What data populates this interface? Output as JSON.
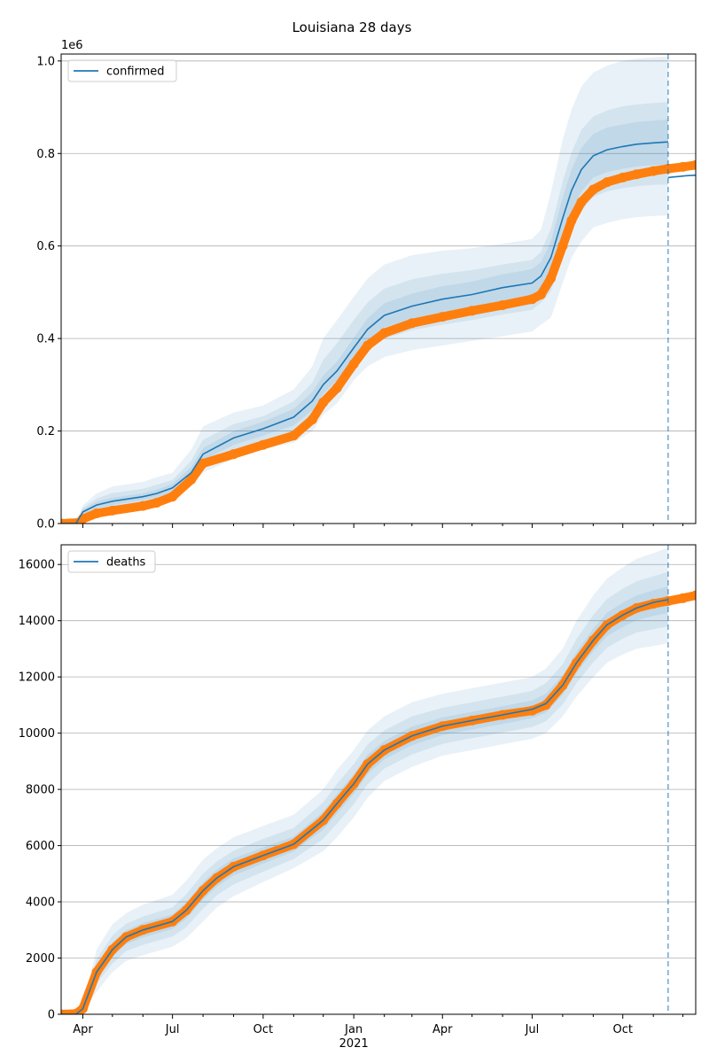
{
  "figure": {
    "title": "Louisiana 28 days"
  },
  "colors": {
    "band": "#1f77b4",
    "model": "#1f77b4",
    "observed": "#ff7f0e",
    "grid": "#b0b0b0",
    "forecast_line": "#1f77b4"
  },
  "chart_data": [
    {
      "type": "line",
      "legend": {
        "entries": [
          "confirmed"
        ],
        "placement": "top-left"
      },
      "y_scale_label": "1e6",
      "ylim": [
        0,
        1015000
      ],
      "yticks": [
        0,
        200000,
        400000,
        600000,
        800000,
        1000000
      ],
      "ytick_labels": [
        "0.0",
        "0.2",
        "0.4",
        "0.6",
        "0.8",
        "1.0"
      ],
      "xlim": [
        "2020-03-10",
        "2021-12-14"
      ],
      "grid": "y-major",
      "forecast_start": "2021-11-16",
      "x": [
        "2020-03-10",
        "2020-03-25",
        "2020-04-01",
        "2020-04-15",
        "2020-05-01",
        "2020-06-01",
        "2020-06-15",
        "2020-07-01",
        "2020-07-20",
        "2020-08-01",
        "2020-09-01",
        "2020-10-01",
        "2020-11-01",
        "2020-11-20",
        "2020-12-01",
        "2020-12-15",
        "2021-01-01",
        "2021-01-15",
        "2021-02-01",
        "2021-03-01",
        "2021-04-01",
        "2021-05-01",
        "2021-06-01",
        "2021-07-01",
        "2021-07-10",
        "2021-07-20",
        "2021-08-01",
        "2021-08-10",
        "2021-08-20",
        "2021-09-01",
        "2021-09-15",
        "2021-10-01",
        "2021-10-15",
        "2021-11-01",
        "2021-11-16"
      ],
      "series": [
        {
          "name": "confirmed",
          "role": "model",
          "values": [
            0,
            0,
            25000,
            40000,
            48000,
            58000,
            65000,
            77000,
            110000,
            150000,
            185000,
            205000,
            230000,
            265000,
            300000,
            330000,
            380000,
            420000,
            450000,
            470000,
            485000,
            495000,
            510000,
            520000,
            535000,
            575000,
            660000,
            720000,
            765000,
            795000,
            808000,
            815000,
            820000,
            823000,
            825000
          ],
          "bands": [
            {
              "level": "outer",
              "lower": [
                0,
                0,
                12000,
                20000,
                24000,
                36000,
                40000,
                50000,
                80000,
                110000,
                140000,
                160000,
                175000,
                200000,
                235000,
                260000,
                310000,
                340000,
                360000,
                375000,
                385000,
                395000,
                405000,
                415000,
                430000,
                445000,
                520000,
                575000,
                610000,
                640000,
                650000,
                658000,
                662000,
                665000,
                666000
              ],
              "upper": [
                0,
                0,
                40000,
                65000,
                80000,
                90000,
                100000,
                110000,
                160000,
                210000,
                240000,
                255000,
                290000,
                340000,
                400000,
                440000,
                490000,
                530000,
                560000,
                580000,
                590000,
                595000,
                605000,
                615000,
                635000,
                715000,
                830000,
                895000,
                945000,
                975000,
                990000,
                1000000,
                1005000,
                1008000,
                1010000
              ]
            },
            {
              "level": "middle",
              "lower": [
                0,
                0,
                18000,
                27000,
                32000,
                45000,
                50000,
                60000,
                92000,
                127000,
                158000,
                177000,
                198000,
                227000,
                264000,
                292000,
                340000,
                375000,
                400000,
                418000,
                430000,
                440000,
                452000,
                462000,
                477000,
                502000,
                578000,
                636000,
                676000,
                706000,
                718000,
                725000,
                729000,
                732000,
                733000
              ],
              "upper": [
                0,
                0,
                34000,
                54000,
                66000,
                75000,
                84000,
                94000,
                136000,
                181000,
                215000,
                232000,
                264000,
                305000,
                354000,
                390000,
                440000,
                478000,
                508000,
                528000,
                540000,
                548000,
                560000,
                570000,
                587000,
                638000,
                740000,
                802000,
                851000,
                880000,
                893000,
                902000,
                906000,
                909000,
                911000
              ]
            },
            {
              "level": "inner",
              "lower": [
                0,
                0,
                21000,
                33000,
                40000,
                51000,
                57000,
                68000,
                100000,
                137000,
                170000,
                190000,
                212000,
                245000,
                280000,
                310000,
                358000,
                396000,
                424000,
                443000,
                457000,
                467000,
                481000,
                490000,
                505000,
                535000,
                615000,
                675000,
                718000,
                748000,
                760000,
                767000,
                772000,
                775000,
                776000
              ],
              "upper": [
                0,
                0,
                30000,
                47000,
                56000,
                65000,
                73000,
                86000,
                122000,
                163000,
                200000,
                220000,
                248000,
                285000,
                320000,
                350000,
                402000,
                444000,
                476000,
                497000,
                513000,
                523000,
                539000,
                550000,
                565000,
                610000,
                705000,
                765000,
                812000,
                842000,
                856000,
                863000,
                868000,
                871000,
                874000
              ]
            }
          ]
        },
        {
          "name": "",
          "role": "model-forecast",
          "x": [
            "2021-11-16",
            "2021-11-25",
            "2021-12-05",
            "2021-12-14"
          ],
          "values": [
            748000,
            750000,
            752000,
            753000
          ]
        },
        {
          "name": "",
          "role": "observed",
          "x": [
            "2020-03-10",
            "2020-03-28",
            "2020-04-01",
            "2020-04-15",
            "2020-05-01",
            "2020-06-01",
            "2020-06-15",
            "2020-07-01",
            "2020-07-20",
            "2020-08-01",
            "2020-09-01",
            "2020-10-01",
            "2020-11-01",
            "2020-11-20",
            "2020-12-01",
            "2020-12-15",
            "2021-01-01",
            "2021-01-15",
            "2021-02-01",
            "2021-03-01",
            "2021-04-01",
            "2021-05-01",
            "2021-06-01",
            "2021-07-01",
            "2021-07-10",
            "2021-07-20",
            "2021-08-01",
            "2021-08-10",
            "2021-08-20",
            "2021-09-01",
            "2021-09-15",
            "2021-10-01",
            "2021-10-15",
            "2021-11-01",
            "2021-11-16",
            "2021-12-01",
            "2021-12-14"
          ],
          "values": [
            0,
            2000,
            10000,
            22000,
            28000,
            38000,
            45000,
            58000,
            95000,
            130000,
            150000,
            170000,
            190000,
            225000,
            262000,
            293000,
            345000,
            385000,
            412000,
            433000,
            447000,
            460000,
            472000,
            485000,
            495000,
            530000,
            600000,
            655000,
            695000,
            722000,
            738000,
            748000,
            755000,
            762000,
            767000,
            771000,
            775000
          ]
        }
      ]
    },
    {
      "type": "line",
      "legend": {
        "entries": [
          "deaths"
        ],
        "placement": "top-left"
      },
      "ylim": [
        0,
        16700
      ],
      "yticks": [
        0,
        2000,
        4000,
        6000,
        8000,
        10000,
        12000,
        14000,
        16000
      ],
      "ytick_labels": [
        "0",
        "2000",
        "4000",
        "6000",
        "8000",
        "10000",
        "12000",
        "14000",
        "16000"
      ],
      "xlim": [
        "2020-03-10",
        "2021-12-14"
      ],
      "xticks": [
        "2020-04-01",
        "2020-07-01",
        "2020-10-01",
        "2021-01-01",
        "2021-04-01",
        "2021-07-01",
        "2021-10-01"
      ],
      "xtick_labels": [
        "Apr",
        "Jul",
        "Oct",
        "Jan",
        "Apr",
        "Jul",
        "Oct"
      ],
      "xtick_year_label": "2021",
      "grid": "y-major",
      "forecast_start": "2021-11-16",
      "x": [
        "2020-03-10",
        "2020-03-25",
        "2020-04-01",
        "2020-04-15",
        "2020-05-01",
        "2020-05-15",
        "2020-06-01",
        "2020-07-01",
        "2020-07-15",
        "2020-08-01",
        "2020-08-15",
        "2020-09-01",
        "2020-10-01",
        "2020-11-01",
        "2020-12-01",
        "2020-12-15",
        "2021-01-01",
        "2021-01-15",
        "2021-02-01",
        "2021-03-01",
        "2021-04-01",
        "2021-05-01",
        "2021-06-01",
        "2021-07-01",
        "2021-07-15",
        "2021-08-01",
        "2021-08-15",
        "2021-09-01",
        "2021-09-15",
        "2021-10-01",
        "2021-10-15",
        "2021-11-01",
        "2021-11-16"
      ],
      "series": [
        {
          "name": "deaths",
          "role": "model",
          "values": [
            0,
            0,
            200,
            1500,
            2300,
            2750,
            3000,
            3300,
            3700,
            4400,
            4850,
            5250,
            5650,
            6050,
            6900,
            7500,
            8200,
            8900,
            9400,
            9900,
            10250,
            10450,
            10650,
            10850,
            11050,
            11700,
            12500,
            13300,
            13850,
            14200,
            14450,
            14650,
            14750
          ],
          "bands": [
            {
              "level": "outer",
              "lower": [
                0,
                0,
                100,
                800,
                1500,
                1900,
                2100,
                2400,
                2700,
                3300,
                3800,
                4200,
                4700,
                5200,
                5800,
                6300,
                7000,
                7700,
                8300,
                8800,
                9200,
                9400,
                9600,
                9800,
                10000,
                10600,
                11300,
                12000,
                12500,
                12800,
                13000,
                13100,
                13200
              ],
              "upper": [
                0,
                0,
                350,
                2300,
                3200,
                3600,
                3900,
                4250,
                4750,
                5500,
                5900,
                6300,
                6700,
                7100,
                8000,
                8700,
                9400,
                10100,
                10600,
                11100,
                11400,
                11600,
                11800,
                12000,
                12300,
                13000,
                14000,
                14900,
                15500,
                15900,
                16200,
                16400,
                16600
              ]
            },
            {
              "level": "middle",
              "lower": [
                0,
                0,
                140,
                1100,
                1800,
                2250,
                2470,
                2770,
                3100,
                3760,
                4230,
                4620,
                5070,
                5520,
                6240,
                6780,
                7480,
                8180,
                8740,
                9240,
                9620,
                9820,
                10020,
                10220,
                10420,
                11020,
                11780,
                12520,
                13040,
                13360,
                13580,
                13700,
                13800
              ],
              "upper": [
                0,
                0,
                290,
                1950,
                2800,
                3220,
                3480,
                3800,
                4270,
                5000,
                5440,
                5820,
                6240,
                6630,
                7540,
                8200,
                8900,
                9600,
                10100,
                10600,
                10900,
                11100,
                11300,
                11500,
                11780,
                12450,
                13350,
                14200,
                14770,
                15140,
                15400,
                15580,
                15740
              ]
            },
            {
              "level": "inner",
              "lower": [
                0,
                0,
                170,
                1300,
                2050,
                2500,
                2730,
                3030,
                3400,
                4080,
                4540,
                4940,
                5360,
                5790,
                6570,
                7140,
                7840,
                8540,
                9070,
                9570,
                9930,
                10130,
                10330,
                10530,
                10730,
                11360,
                12140,
                12910,
                13450,
                13780,
                14020,
                14170,
                14280
              ],
              "upper": [
                0,
                0,
                250,
                1720,
                2550,
                2990,
                3250,
                3550,
                3980,
                4700,
                5150,
                5550,
                5940,
                6320,
                7210,
                7840,
                8540,
                9240,
                9730,
                10230,
                10560,
                10760,
                10960,
                11160,
                11400,
                12060,
                12890,
                13720,
                14280,
                14640,
                14900,
                15080,
                15220
              ]
            }
          ]
        },
        {
          "name": "",
          "role": "observed",
          "x": [
            "2020-03-10",
            "2020-03-25",
            "2020-04-01",
            "2020-04-15",
            "2020-05-01",
            "2020-05-15",
            "2020-06-01",
            "2020-07-01",
            "2020-07-15",
            "2020-08-01",
            "2020-08-15",
            "2020-09-01",
            "2020-10-01",
            "2020-11-01",
            "2020-12-01",
            "2020-12-15",
            "2021-01-01",
            "2021-01-15",
            "2021-02-01",
            "2021-03-01",
            "2021-04-01",
            "2021-05-01",
            "2021-06-01",
            "2021-07-01",
            "2021-07-15",
            "2021-08-01",
            "2021-08-15",
            "2021-09-01",
            "2021-09-15",
            "2021-10-01",
            "2021-10-15",
            "2021-11-01",
            "2021-11-16",
            "2021-12-01",
            "2021-12-14"
          ],
          "values": [
            0,
            20,
            200,
            1500,
            2300,
            2750,
            3000,
            3300,
            3700,
            4400,
            4850,
            5250,
            5650,
            6050,
            6900,
            7500,
            8200,
            8900,
            9400,
            9900,
            10250,
            10450,
            10650,
            10800,
            11000,
            11700,
            12500,
            13300,
            13850,
            14200,
            14450,
            14600,
            14700,
            14800,
            14900
          ]
        }
      ]
    }
  ]
}
